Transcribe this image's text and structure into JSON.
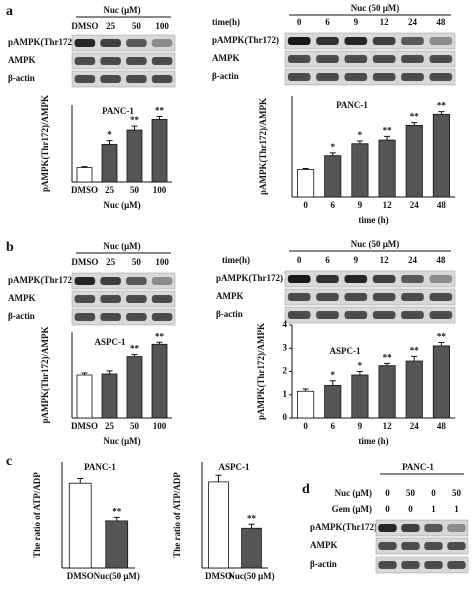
{
  "panel_labels": [
    "a",
    "b",
    "c",
    "d"
  ],
  "blots": [
    {
      "header": "Nuc (μM)",
      "lanes": [
        "DMSO",
        "25",
        "50",
        "100"
      ],
      "rows": [
        "pAMPK(Thr172)",
        "AMPK",
        "β-actin"
      ]
    },
    {
      "header": "Nuc (50 μM)",
      "lane_label": "time(h)",
      "lanes": [
        "0",
        "6",
        "9",
        "12",
        "24",
        "48"
      ],
      "rows": [
        "pAMPK(Thr172)",
        "AMPK",
        "β-actin"
      ]
    },
    {
      "header": "Nuc (μM)",
      "lanes": [
        "DMSO",
        "25",
        "50",
        "100"
      ],
      "rows": [
        "pAMPK(Thr172)",
        "AMPK",
        "β-actin"
      ]
    },
    {
      "header": "Nuc (50 μM)",
      "lane_label": "time(h)",
      "lanes": [
        "0",
        "6",
        "9",
        "12",
        "24",
        "48"
      ],
      "rows": [
        "pAMPK(Thr172)",
        "AMPK",
        "β-actin"
      ]
    },
    {
      "header": "PANC-1",
      "conditions": [
        {
          "label": "Nuc (μM)",
          "values": [
            "0",
            "50",
            "0",
            "50"
          ]
        },
        {
          "label": "Gem (μM)",
          "values": [
            "0",
            "0",
            "1",
            "1"
          ]
        }
      ],
      "rows": [
        "pAMPK(Thr172)",
        "AMPK",
        "β-actin"
      ]
    }
  ],
  "chart_data": [
    {
      "type": "bar",
      "title": "PANC-1",
      "y_label": "pAMPK(Thr172)/AMPK",
      "x_label": "Nuc (μM)",
      "categories": [
        "DMSO",
        "25",
        "50",
        "100"
      ],
      "values": [
        0.15,
        0.39,
        0.54,
        0.65
      ],
      "errors": [
        0.01,
        0.04,
        0.04,
        0.03
      ],
      "annotations": [
        null,
        "*",
        "**",
        "**"
      ],
      "colors": [
        "#ffffff",
        "#555555",
        "#555555",
        "#555555"
      ],
      "ylim": [
        0,
        0.8
      ]
    },
    {
      "type": "bar",
      "title": "PANC-1",
      "y_label": "pAMPK(Thr172)/AMPK",
      "x_label": "time (h)",
      "categories": [
        "0",
        "6",
        "9",
        "12",
        "24",
        "48"
      ],
      "values": [
        0.3,
        0.45,
        0.58,
        0.62,
        0.78,
        0.9
      ],
      "errors": [
        0.01,
        0.03,
        0.03,
        0.04,
        0.03,
        0.03
      ],
      "annotations": [
        null,
        "*",
        "*",
        "**",
        "**",
        "**"
      ],
      "colors": [
        "#ffffff",
        "#555555",
        "#555555",
        "#555555",
        "#555555",
        "#555555"
      ],
      "ylim": [
        0,
        1.1
      ]
    },
    {
      "type": "bar",
      "title": "ASPC-1",
      "y_label": "pAMPK(Thr172)/AMPK",
      "x_label": "Nuc (μM)",
      "categories": [
        "DMSO",
        "25",
        "50",
        "100"
      ],
      "values": [
        2.1,
        2.15,
        3.0,
        3.6
      ],
      "errors": [
        0.1,
        0.15,
        0.1,
        0.1
      ],
      "annotations": [
        null,
        null,
        "**",
        "**"
      ],
      "colors": [
        "#ffffff",
        "#555555",
        "#555555",
        "#555555"
      ],
      "ylim": [
        0,
        4.2
      ]
    },
    {
      "type": "bar",
      "title": "ASPC-1",
      "y_label": "pAMPK(Thr172)/AMPK",
      "x_label": "time (h)",
      "categories": [
        "0",
        "6",
        "9",
        "12",
        "24",
        "48"
      ],
      "values": [
        1.15,
        1.4,
        1.85,
        2.25,
        2.45,
        3.1
      ],
      "errors": [
        0.1,
        0.2,
        0.15,
        0.1,
        0.2,
        0.15
      ],
      "annotations": [
        null,
        "*",
        "*",
        "**",
        "**",
        "**"
      ],
      "colors": [
        "#ffffff",
        "#555555",
        "#555555",
        "#555555",
        "#555555",
        "#555555"
      ],
      "ylim": [
        0,
        4
      ],
      "yticks": [
        0,
        1,
        2,
        3,
        4
      ]
    },
    {
      "type": "bar",
      "title": "PANC-1",
      "y_label": "The ratio of ATP/ADP",
      "categories": [
        "DMSO",
        "Nuc(50 μM)"
      ],
      "values": [
        0.72,
        0.4
      ],
      "errors": [
        0.04,
        0.03
      ],
      "annotations": [
        null,
        "**"
      ],
      "colors": [
        "#ffffff",
        "#555555"
      ],
      "ylim": [
        0,
        0.9
      ]
    },
    {
      "type": "bar",
      "title": "ASPC-1",
      "y_label": "The ratio of ATP/ADP",
      "categories": [
        "DMSO",
        "Nuc(50 μM)"
      ],
      "values": [
        0.65,
        0.3
      ],
      "errors": [
        0.05,
        0.03
      ],
      "annotations": [
        null,
        "**"
      ],
      "colors": [
        "#ffffff",
        "#555555"
      ],
      "ylim": [
        0,
        0.8
      ]
    }
  ]
}
